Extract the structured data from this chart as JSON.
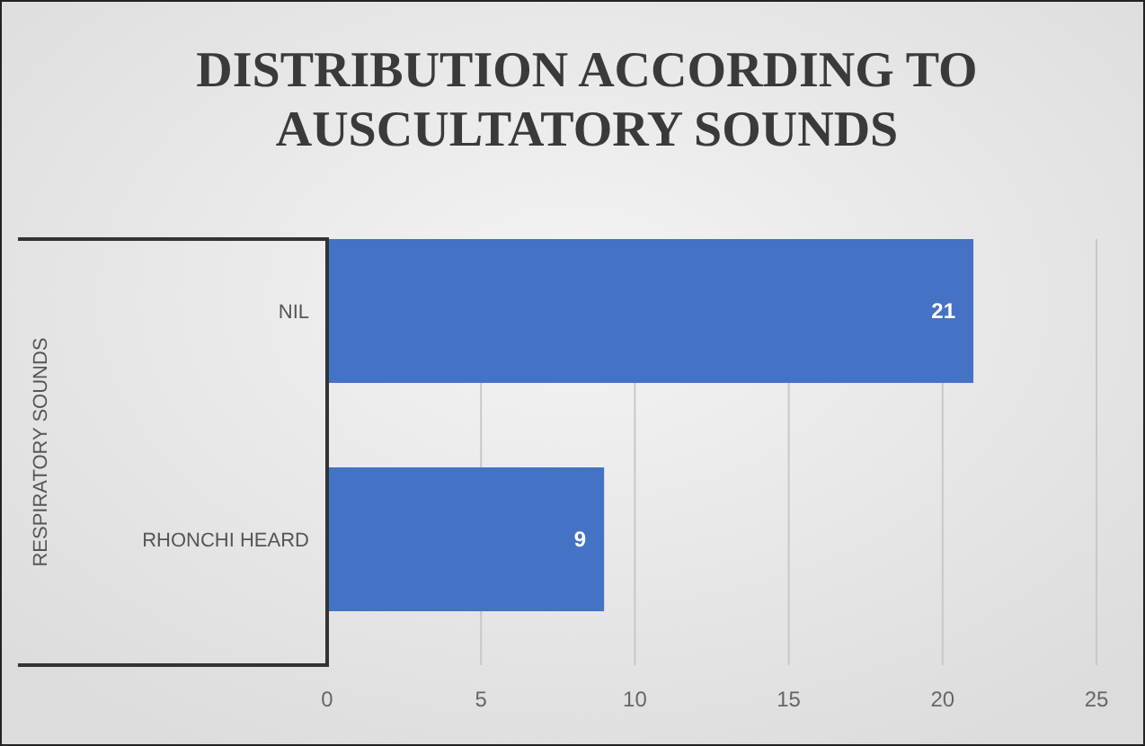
{
  "chart_data": {
    "type": "bar",
    "orientation": "horizontal",
    "title": "DISTRIBUTION ACCORDING TO AUSCULTATORY SOUNDS",
    "ylabel": "RESPIRATORY SOUNDS",
    "categories": [
      "NIL",
      "RHONCHI HEARD"
    ],
    "values": [
      21,
      9
    ],
    "color": "#4472c4",
    "xlim": [
      0,
      25
    ],
    "xticks": [
      0,
      5,
      10,
      15,
      20,
      25
    ],
    "grid": "x",
    "data_labels": true
  }
}
